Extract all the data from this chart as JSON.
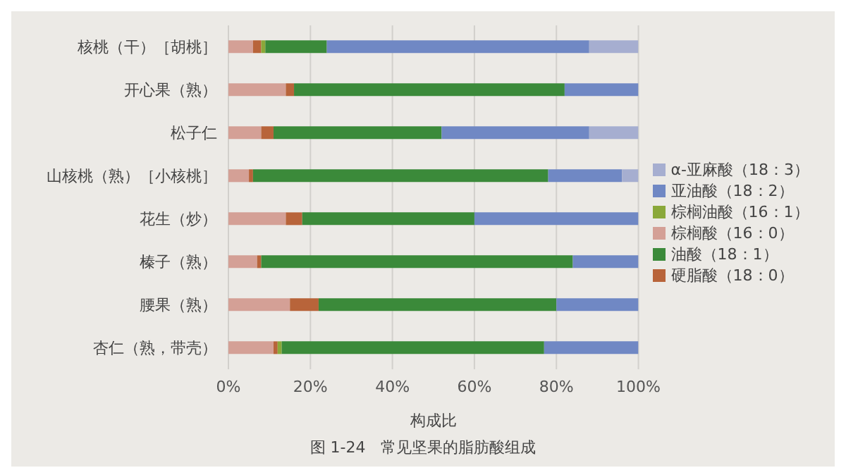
{
  "chart_data": {
    "type": "bar",
    "orientation": "horizontal",
    "stacked": true,
    "title": "图 1-24　常见坚果的脂肪酸组成",
    "xlabel": "构成比",
    "categories": [
      "核桃（干）［胡桃］",
      "开心果（熟）",
      "松子仁",
      "山核桃（熟）［小核桃］",
      "花生（炒）",
      "榛子（熟）",
      "腰果（熟）",
      "杏仁（熟，带壳）"
    ],
    "series": [
      {
        "name": "棕榈酸（16：0）",
        "color": "#d4a096",
        "values": [
          6,
          14,
          8,
          5,
          14,
          7,
          15,
          11
        ]
      },
      {
        "name": "硬脂酸（18：0）",
        "color": "#b8643a",
        "values": [
          2,
          2,
          3,
          1,
          4,
          1,
          7,
          1
        ]
      },
      {
        "name": "棕榈油酸（16：1）",
        "color": "#8aa83a",
        "values": [
          1,
          0,
          0,
          0,
          0,
          0,
          0,
          1
        ]
      },
      {
        "name": "油酸（18：1）",
        "color": "#3b8a3a",
        "values": [
          15,
          66,
          41,
          72,
          42,
          76,
          58,
          64
        ]
      },
      {
        "name": "亚油酸（18：2）",
        "color": "#7088c4",
        "values": [
          64,
          18,
          36,
          18,
          40,
          16,
          20,
          23
        ]
      },
      {
        "name": "α-亚麻酸（18：3）",
        "color": "#a6aed0",
        "values": [
          12,
          0,
          12,
          4,
          0,
          0,
          0,
          0
        ]
      }
    ],
    "xlim": [
      0,
      100
    ],
    "xticks": [
      {
        "value": 0,
        "label": "0%"
      },
      {
        "value": 20,
        "label": "20%"
      },
      {
        "value": 40,
        "label": "40%"
      },
      {
        "value": 60,
        "label": "60%"
      },
      {
        "value": 80,
        "label": "80%"
      },
      {
        "value": 100,
        "label": "100%"
      }
    ],
    "grid": "x",
    "legend": "right"
  }
}
